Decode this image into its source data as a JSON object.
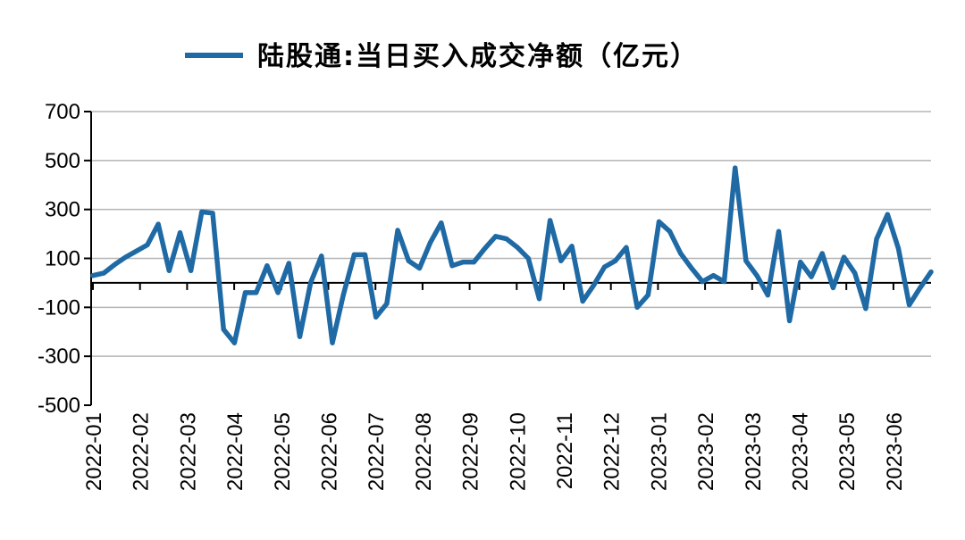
{
  "chart_data": {
    "type": "line",
    "legend": {
      "label": "陆股通:当日买入成交净额（亿元）",
      "position": "top-center"
    },
    "series": [
      {
        "name": "陆股通:当日买入成交净额（亿元）",
        "color": "#1f6aa5",
        "values": [
          30,
          40,
          75,
          105,
          130,
          155,
          240,
          50,
          205,
          50,
          290,
          285,
          -190,
          -245,
          -40,
          -40,
          70,
          -40,
          80,
          -220,
          0,
          110,
          -245,
          -50,
          115,
          115,
          -140,
          -85,
          215,
          90,
          60,
          165,
          245,
          70,
          85,
          85,
          140,
          190,
          180,
          145,
          100,
          -65,
          255,
          90,
          150,
          -75,
          -10,
          65,
          90,
          145,
          -100,
          -50,
          250,
          210,
          120,
          60,
          5,
          30,
          5,
          470,
          90,
          30,
          -50,
          210,
          -155,
          85,
          25,
          120,
          -20,
          105,
          40,
          -105,
          180,
          280,
          140,
          -90,
          -20,
          45
        ]
      }
    ],
    "x_tick_labels": [
      "2022-01",
      "2022-02",
      "2022-03",
      "2022-04",
      "2022-05",
      "2022-06",
      "2022-07",
      "2022-08",
      "2022-09",
      "2022-10",
      "2022-11",
      "2022-12",
      "2023-01",
      "2023-02",
      "2023-03",
      "2023-04",
      "2023-05",
      "2023-06"
    ],
    "y_ticks": [
      700,
      500,
      300,
      100,
      -100,
      -300,
      -500
    ],
    "ylim": [
      -500,
      700
    ],
    "grid": "horizontal"
  }
}
